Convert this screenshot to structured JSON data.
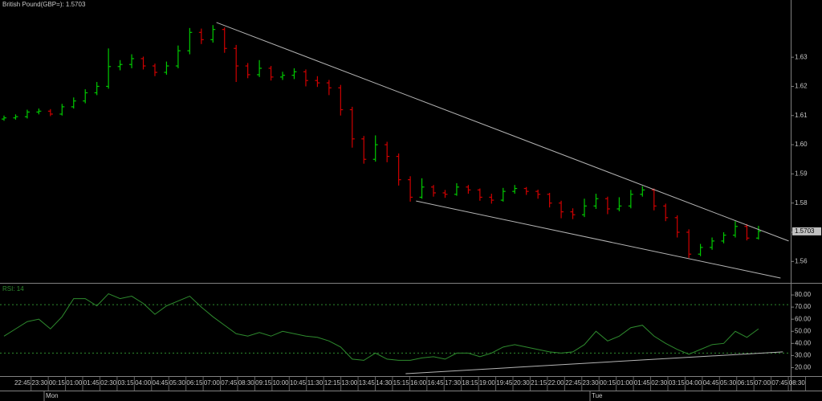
{
  "chart_data": [
    {
      "type": "ohlc",
      "title": "British Pound(GBP=): 1.5703",
      "last_price": 1.5703,
      "up_color": "#00c800",
      "down_color": "#d00000",
      "ylim": [
        1.5532,
        1.6496
      ],
      "yticks": [
        1.56,
        1.57,
        1.58,
        1.59,
        {
          "value": 1.6,
          "label": "1.60"
        },
        1.61,
        1.62,
        1.63
      ],
      "ohlc": [
        [
          1.6088,
          1.61,
          1.6082,
          1.6092
        ],
        [
          1.6092,
          1.6104,
          1.6086,
          1.6096
        ],
        [
          1.6096,
          1.612,
          1.609,
          1.6112
        ],
        [
          1.6112,
          1.6124,
          1.6104,
          1.6115
        ],
        [
          1.6115,
          1.6122,
          1.6098,
          1.6105
        ],
        [
          1.6105,
          1.614,
          1.61,
          1.613
        ],
        [
          1.613,
          1.6162,
          1.6124,
          1.615
        ],
        [
          1.615,
          1.619,
          1.6142,
          1.6178
        ],
        [
          1.6178,
          1.6215,
          1.617,
          1.62
        ],
        [
          1.62,
          1.633,
          1.6192,
          1.6268
        ],
        [
          1.6268,
          1.629,
          1.6255,
          1.6275
        ],
        [
          1.6275,
          1.631,
          1.6262,
          1.6295
        ],
        [
          1.6295,
          1.6302,
          1.6258,
          1.627
        ],
        [
          1.627,
          1.6278,
          1.6235,
          1.6248
        ],
        [
          1.6248,
          1.6285,
          1.624,
          1.627
        ],
        [
          1.627,
          1.634,
          1.6262,
          1.6322
        ],
        [
          1.6322,
          1.64,
          1.631,
          1.6385
        ],
        [
          1.6385,
          1.6398,
          1.6345,
          1.636
        ],
        [
          1.636,
          1.641,
          1.635,
          1.6395
        ],
        [
          1.6395,
          1.6402,
          1.6315,
          1.633
        ],
        [
          1.633,
          1.6342,
          1.6215,
          1.627
        ],
        [
          1.627,
          1.628,
          1.6228,
          1.624
        ],
        [
          1.624,
          1.629,
          1.6232,
          1.6262
        ],
        [
          1.6262,
          1.627,
          1.622,
          1.6232
        ],
        [
          1.6232,
          1.625,
          1.6222,
          1.6238
        ],
        [
          1.6238,
          1.6262,
          1.6225,
          1.625
        ],
        [
          1.625,
          1.6258,
          1.62,
          1.622
        ],
        [
          1.622,
          1.6235,
          1.6198,
          1.6212
        ],
        [
          1.6212,
          1.6222,
          1.617,
          1.6195
        ],
        [
          1.6195,
          1.6205,
          1.61,
          1.612
        ],
        [
          1.612,
          1.613,
          1.599,
          1.602
        ],
        [
          1.602,
          1.603,
          1.5935,
          1.595
        ],
        [
          1.595,
          1.6032,
          1.5942,
          1.6
        ],
        [
          1.6,
          1.601,
          1.594,
          1.596
        ],
        [
          1.596,
          1.597,
          1.586,
          1.588
        ],
        [
          1.588,
          1.5892,
          1.5805,
          1.582
        ],
        [
          1.582,
          1.5885,
          1.5815,
          1.5855
        ],
        [
          1.5855,
          1.5862,
          1.5822,
          1.5835
        ],
        [
          1.5835,
          1.5845,
          1.5818,
          1.583
        ],
        [
          1.583,
          1.5868,
          1.5825,
          1.5855
        ],
        [
          1.5855,
          1.5862,
          1.5832,
          1.5845
        ],
        [
          1.5845,
          1.585,
          1.5808,
          1.582
        ],
        [
          1.582,
          1.5832,
          1.5798,
          1.581
        ],
        [
          1.581,
          1.5852,
          1.5805,
          1.584
        ],
        [
          1.584,
          1.5862,
          1.5832,
          1.585
        ],
        [
          1.585,
          1.5855,
          1.5828,
          1.584
        ],
        [
          1.584,
          1.5846,
          1.5815,
          1.583
        ],
        [
          1.583,
          1.5835,
          1.5785,
          1.58
        ],
        [
          1.58,
          1.5808,
          1.5748,
          1.577
        ],
        [
          1.577,
          1.5782,
          1.5745,
          1.576
        ],
        [
          1.576,
          1.5815,
          1.5752,
          1.579
        ],
        [
          1.579,
          1.5832,
          1.578,
          1.5815
        ],
        [
          1.5815,
          1.5822,
          1.5762,
          1.578
        ],
        [
          1.578,
          1.582,
          1.5772,
          1.579
        ],
        [
          1.579,
          1.5845,
          1.5782,
          1.583
        ],
        [
          1.583,
          1.5858,
          1.5822,
          1.5845
        ],
        [
          1.5845,
          1.585,
          1.5775,
          1.579
        ],
        [
          1.579,
          1.5798,
          1.5738,
          1.575
        ],
        [
          1.575,
          1.5758,
          1.5682,
          1.57
        ],
        [
          1.57,
          1.571,
          1.5612,
          1.5625
        ],
        [
          1.5625,
          1.566,
          1.5618,
          1.5648
        ],
        [
          1.5648,
          1.5682,
          1.564,
          1.567
        ],
        [
          1.567,
          1.57,
          1.5662,
          1.569
        ],
        [
          1.569,
          1.5738,
          1.5682,
          1.572
        ],
        [
          1.572,
          1.5728,
          1.5672,
          1.568
        ],
        [
          1.568,
          1.5722,
          1.5675,
          1.5703
        ]
      ],
      "trendlines": [
        {
          "points": [
            [
              18.3,
              1.6419
            ],
            [
              67.6,
              1.567
            ]
          ]
        },
        {
          "points": [
            [
              35.5,
              1.5807
            ],
            [
              66.9,
              1.5543
            ]
          ]
        }
      ],
      "time_labels": [
        "22:45",
        "23:30",
        "00:15",
        "01:00",
        "01:45",
        "02:30",
        "03:15",
        "04:00",
        "04:45",
        "05:30",
        "06:15",
        "07:00",
        "07:45",
        "08:30",
        "09:15",
        "10:00",
        "10:45",
        "11:30",
        "12:15",
        "13:00",
        "13:45",
        "14:30",
        "15:15",
        "16:00",
        "16:45",
        "17:30",
        "18:15",
        "19:00",
        "19:45",
        "20:30",
        "21:15",
        "22:00",
        "22:45",
        "23:30",
        "00:15",
        "01:00",
        "01:45",
        "02:30",
        "03:15",
        "04:00",
        "04:45",
        "05:30",
        "06:15",
        "07:00",
        "07:45",
        "08:30"
      ],
      "day_labels": [
        "Mon",
        "Tue"
      ]
    },
    {
      "type": "line",
      "title": "RSI: 14",
      "color": "#2e8b2e",
      "ylim": [
        13,
        88
      ],
      "yticks": [
        {
          "value": 20,
          "label": "20.00"
        },
        {
          "value": 30,
          "label": "30.00"
        },
        {
          "value": 40,
          "label": "40.00"
        },
        {
          "value": 50,
          "label": "50.00"
        },
        {
          "value": 60,
          "label": "60.00"
        },
        {
          "value": 70,
          "label": "70.00"
        },
        {
          "value": 80,
          "label": "80.00"
        }
      ],
      "levels": [
        72,
        32
      ],
      "values": [
        46,
        52,
        58,
        60,
        52,
        62,
        77,
        77,
        71,
        81,
        77,
        79,
        73,
        64,
        71,
        75,
        79,
        70,
        62,
        55,
        48,
        46,
        49,
        46,
        50,
        48,
        46,
        45,
        42,
        37,
        27,
        26,
        32,
        27,
        26,
        26,
        28,
        29,
        27,
        32,
        32,
        29,
        32,
        37,
        39,
        37,
        35,
        33,
        32,
        33,
        39,
        50,
        42,
        46,
        53,
        55,
        46,
        40,
        35,
        31,
        35,
        39,
        40,
        50,
        45,
        52
      ],
      "trendlines": [
        {
          "points": [
            [
              34.6,
              15
            ],
            [
              67.1,
              33
            ]
          ]
        }
      ]
    }
  ]
}
